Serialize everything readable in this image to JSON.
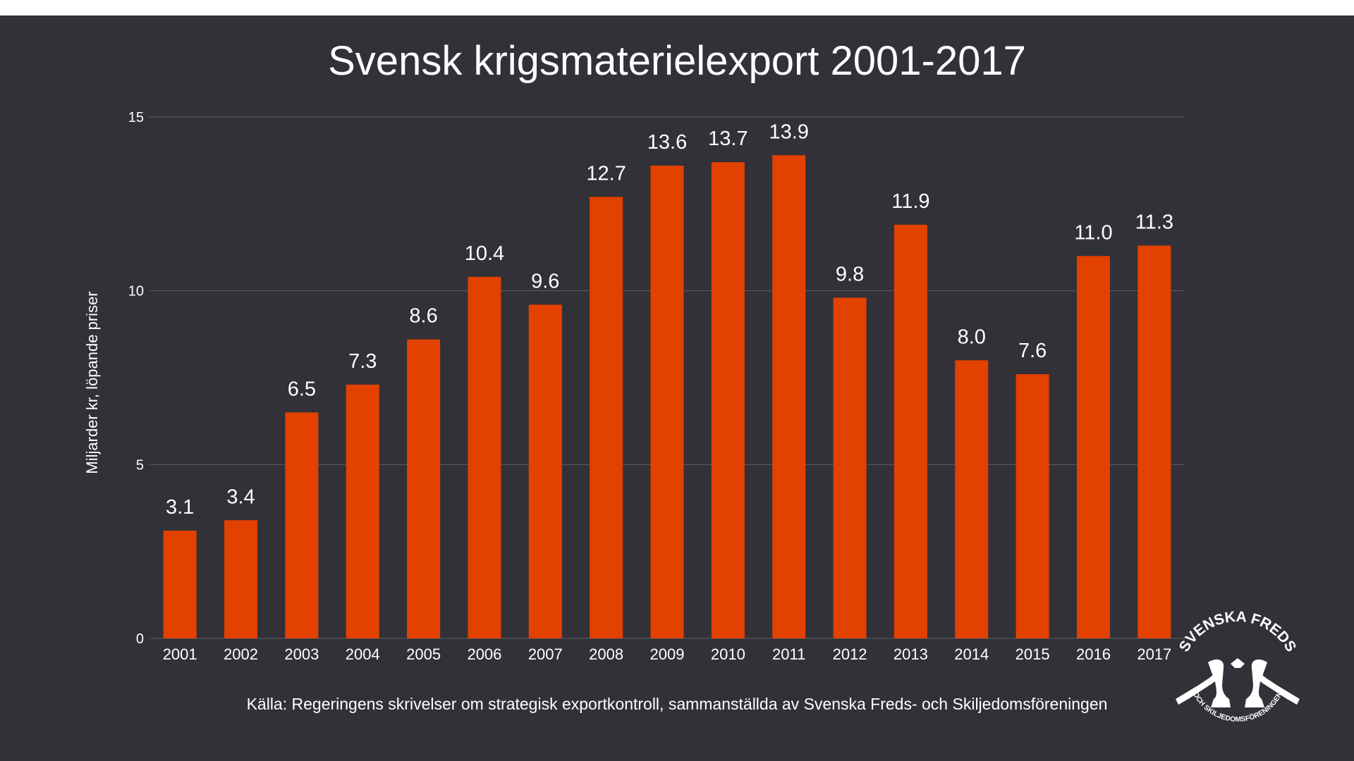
{
  "colors": {
    "background": "#323137",
    "bar": "#e34100",
    "text": "#ffffff",
    "grid": "#5e5d63"
  },
  "source": "Källa: Regeringens skrivelser om strategisk exportkontroll, sammanställda av Svenska Freds- och Skiljedomsföreningen",
  "logo": {
    "top_text": "SVENSKA FREDS",
    "bottom_text": "OCH SKILJEDOMSFÖRENINGEN"
  },
  "chart_data": {
    "type": "bar",
    "title": "Svensk krigsmaterielexport 2001-2017",
    "xlabel": "",
    "ylabel": "Miljarder kr, löpande priser",
    "ylim": [
      0,
      15
    ],
    "yticks": [
      0,
      5,
      10,
      15
    ],
    "grid": true,
    "categories": [
      "2001",
      "2002",
      "2003",
      "2004",
      "2005",
      "2006",
      "2007",
      "2008",
      "2009",
      "2010",
      "2011",
      "2012",
      "2013",
      "2014",
      "2015",
      "2016",
      "2017"
    ],
    "values": [
      3.1,
      3.4,
      6.5,
      7.3,
      8.6,
      10.4,
      9.6,
      12.7,
      13.6,
      13.7,
      13.9,
      9.8,
      11.9,
      8.0,
      7.6,
      11.0,
      11.3
    ],
    "value_labels": [
      "3.1",
      "3.4",
      "6.5",
      "7.3",
      "8.6",
      "10.4",
      "9.6",
      "12.7",
      "13.6",
      "13.7",
      "13.9",
      "9.8",
      "11.9",
      "8.0",
      "7.6",
      "11.0",
      "11.3"
    ]
  }
}
